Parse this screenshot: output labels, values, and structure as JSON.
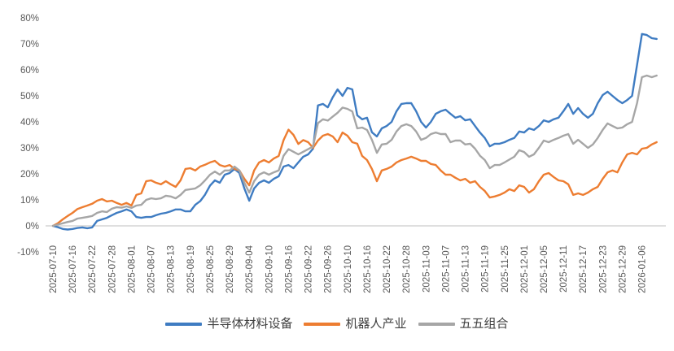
{
  "chart_data": {
    "type": "line",
    "title": "",
    "xlabel": "",
    "ylabel": "",
    "y_unit": "%",
    "ylim": [
      -10,
      80
    ],
    "y_tick_labels": [
      "80%",
      "70%",
      "60%",
      "50%",
      "40%",
      "30%",
      "20%",
      "10%",
      "0%",
      "-10%"
    ],
    "gridlines": false,
    "zero_axis_line": true,
    "legend_position": "bottom",
    "x_tick_labels": [
      "2025-07-10",
      "2025-07-16",
      "2025-07-22",
      "2025-07-28",
      "2025-08-01",
      "2025-08-07",
      "2025-08-13",
      "2025-08-19",
      "2025-08-25",
      "2025-08-29",
      "2025-09-04",
      "2025-09-10",
      "2025-09-16",
      "2025-09-22",
      "2025-09-26",
      "2025-10-10",
      "2025-10-16",
      "2025-10-22",
      "2025-10-28",
      "2025-11-03",
      "2025-11-07",
      "2025-11-13",
      "2025-11-19",
      "2025-11-25",
      "2025-12-01",
      "2025-12-05",
      "2025-12-11",
      "2025-12-17",
      "2025-12-23",
      "2025-12-29",
      "2026-01-06"
    ],
    "points_per_tick": 4,
    "series": [
      {
        "name": "半导体材料设备",
        "color": "#3F7CC2",
        "values": [
          0,
          -0.5,
          -1.2,
          -1.4,
          -1.2,
          -0.8,
          -0.6,
          -0.9,
          -0.6,
          1.9,
          2.5,
          3.1,
          4.1,
          5,
          5.6,
          6.3,
          5.6,
          3.4,
          3.1,
          3.4,
          3.4,
          4.1,
          4.7,
          5,
          5.6,
          6.3,
          6.3,
          5.6,
          5.6,
          8.1,
          9.5,
          12,
          15.5,
          17.5,
          16.6,
          19.7,
          20.3,
          21.9,
          20.3,
          14.4,
          9.7,
          14.4,
          16.6,
          17.5,
          16.6,
          18.1,
          19.1,
          22.8,
          23.4,
          22.2,
          24.4,
          26.6,
          27.5,
          29.7,
          46.3,
          46.9,
          45.6,
          49.4,
          52.5,
          50,
          53.1,
          52.5,
          42.5,
          41,
          41.6,
          36,
          34.4,
          37.5,
          38.4,
          40,
          44.1,
          46.9,
          47.2,
          47.2,
          44.1,
          40,
          37.8,
          40,
          43.1,
          44.1,
          44.7,
          43.1,
          41.6,
          42.2,
          40.6,
          41,
          38.4,
          35.9,
          33.8,
          30.6,
          31.6,
          31.6,
          32.2,
          33.1,
          33.8,
          36.3,
          35.9,
          37.5,
          36.9,
          38.4,
          40.6,
          40,
          41,
          41.6,
          44.1,
          46.9,
          43.1,
          45.3,
          43.1,
          41.6,
          43.1,
          47.2,
          50.3,
          51.6,
          50,
          48.4,
          47.2,
          48.4,
          50,
          61.9,
          73.8,
          73.4,
          72.2,
          71.9
        ]
      },
      {
        "name": "机器人产业",
        "color": "#ED7D31",
        "values": [
          0,
          1,
          2.5,
          3.8,
          5,
          6.5,
          7.2,
          7.8,
          8.5,
          9.7,
          10.3,
          9.4,
          9.7,
          8.8,
          8.1,
          8.8,
          7.8,
          11.9,
          12.5,
          17.2,
          17.5,
          16.6,
          16,
          17.2,
          16,
          15,
          17.5,
          21.9,
          22.2,
          21.3,
          22.8,
          23.5,
          24.4,
          25,
          23.4,
          22.8,
          23.4,
          21.9,
          21.3,
          18.1,
          15.6,
          21.3,
          24.4,
          25.3,
          24.4,
          25.9,
          26.9,
          33,
          37,
          35,
          31.5,
          33,
          32.2,
          30,
          32.8,
          34.7,
          35.3,
          34.4,
          32.2,
          35.9,
          34.7,
          32.2,
          31.6,
          26.9,
          25.3,
          21.9,
          17.2,
          21.3,
          21.9,
          22.8,
          24.4,
          25.3,
          25.9,
          26.6,
          25.9,
          25,
          25,
          23.8,
          23.4,
          21.3,
          19.7,
          19.7,
          18.5,
          17.5,
          18.1,
          16.6,
          17.2,
          15,
          13.4,
          10.9,
          11.3,
          11.9,
          12.8,
          14.1,
          13.4,
          15.6,
          15,
          12.8,
          14.1,
          17.2,
          19.7,
          20.3,
          18.8,
          17.5,
          17.2,
          16,
          11.9,
          12.5,
          11.9,
          12.8,
          14.1,
          15,
          18.1,
          20.6,
          21.3,
          20.6,
          24.4,
          27.5,
          28.1,
          27.5,
          29.7,
          30,
          31.3,
          32.2
        ]
      },
      {
        "name": "五五组合",
        "color": "#A6A6A6",
        "values": [
          0,
          0.5,
          1,
          1.5,
          1.9,
          2.8,
          3.1,
          3.4,
          3.8,
          5,
          5.6,
          5.3,
          6.6,
          7.2,
          7,
          7.5,
          6.9,
          7.8,
          8.1,
          10,
          10.6,
          10.3,
          10.6,
          11.6,
          11.3,
          10.6,
          11.9,
          13.8,
          14.1,
          14.4,
          15.6,
          17.5,
          19.7,
          20.9,
          19.7,
          21.3,
          21.3,
          22.8,
          21.3,
          16.6,
          12.8,
          17.2,
          19.7,
          20.6,
          19.7,
          20.6,
          21.3,
          27,
          29.5,
          28.5,
          27.5,
          28.5,
          29.5,
          30.5,
          39.5,
          41,
          40.5,
          42,
          43.5,
          45.5,
          45,
          44,
          37.5,
          37.8,
          36.9,
          33.1,
          28.1,
          31.3,
          31.6,
          33.1,
          36.3,
          38.4,
          39.1,
          38.4,
          36.3,
          33.1,
          33.8,
          35.3,
          35.9,
          35.3,
          35.3,
          32.2,
          32.8,
          32.8,
          31.3,
          31.6,
          29.7,
          27,
          25.3,
          22.2,
          23.4,
          23.4,
          24.4,
          25.5,
          26.6,
          29.1,
          28.4,
          26.6,
          27.5,
          30,
          32.8,
          32.2,
          33.1,
          33.8,
          34.7,
          35.3,
          31.6,
          33.1,
          31.6,
          30,
          31.3,
          33.8,
          36.9,
          39.4,
          38.4,
          37.5,
          37.8,
          39.1,
          40,
          47.2,
          57.2,
          57.8,
          57.2,
          57.8
        ]
      }
    ]
  },
  "colors": {
    "background": "#ffffff",
    "axis_label": "#595959",
    "zero_line": "#bfbfbf",
    "legend_text": "#404040"
  }
}
